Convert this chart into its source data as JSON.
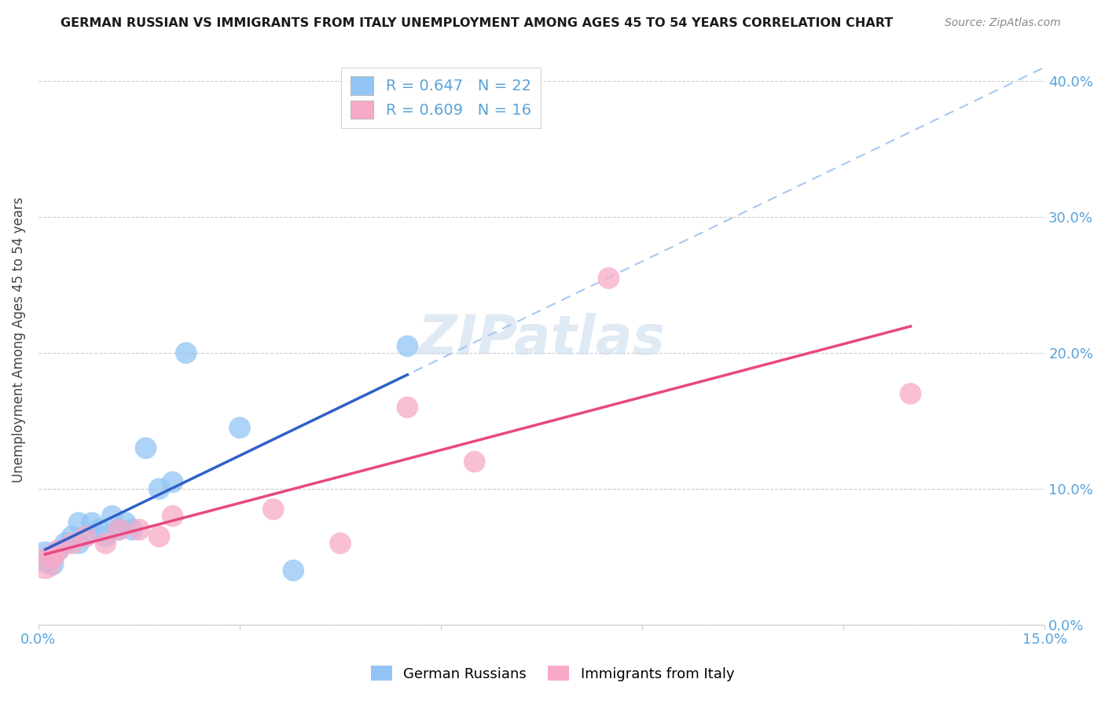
{
  "title": "GERMAN RUSSIAN VS IMMIGRANTS FROM ITALY UNEMPLOYMENT AMONG AGES 45 TO 54 YEARS CORRELATION CHART",
  "source": "Source: ZipAtlas.com",
  "tick_color": "#5ba3d9",
  "ylabel": "Unemployment Among Ages 45 to 54 years",
  "xlim": [
    0.0,
    0.15
  ],
  "ylim": [
    0.0,
    0.42
  ],
  "ytick_pos": [
    0.0,
    0.1,
    0.2,
    0.3,
    0.4
  ],
  "ytick_labels": [
    "0.0%",
    "10.0%",
    "20.0%",
    "30.0%",
    "40.0%"
  ],
  "xtick_pos": [
    0.0,
    0.03,
    0.06,
    0.09,
    0.12,
    0.15
  ],
  "xtick_labels": [
    "0.0%",
    "",
    "",
    "",
    "",
    "15.0%"
  ],
  "blue_color": "#92c5f5",
  "pink_color": "#f7aac8",
  "blue_line_color": "#3060c8",
  "pink_line_color": "#e84880",
  "dashed_line_color": "#a8c8f0",
  "watermark": "ZIPatlas",
  "legend_labels": [
    "R = 0.647   N = 22",
    "R = 0.609   N = 16"
  ],
  "bottom_labels": [
    "German Russians",
    "Immigrants from Italy"
  ],
  "blue_x": [
    0.001,
    0.002,
    0.003,
    0.004,
    0.005,
    0.006,
    0.006,
    0.007,
    0.008,
    0.009,
    0.01,
    0.011,
    0.012,
    0.013,
    0.014,
    0.016,
    0.018,
    0.02,
    0.022,
    0.03,
    0.038,
    0.055
  ],
  "blue_y": [
    0.05,
    0.045,
    0.055,
    0.06,
    0.065,
    0.06,
    0.075,
    0.065,
    0.075,
    0.07,
    0.065,
    0.08,
    0.07,
    0.075,
    0.07,
    0.13,
    0.1,
    0.105,
    0.2,
    0.145,
    0.04,
    0.205
  ],
  "blue_size": [
    800,
    500,
    400,
    400,
    400,
    400,
    400,
    400,
    400,
    400,
    400,
    400,
    400,
    400,
    400,
    400,
    400,
    400,
    400,
    400,
    400,
    400
  ],
  "pink_x": [
    0.001,
    0.002,
    0.003,
    0.005,
    0.007,
    0.01,
    0.012,
    0.015,
    0.018,
    0.02,
    0.035,
    0.045,
    0.055,
    0.065,
    0.085,
    0.13
  ],
  "pink_y": [
    0.045,
    0.05,
    0.055,
    0.06,
    0.065,
    0.06,
    0.07,
    0.07,
    0.065,
    0.08,
    0.085,
    0.06,
    0.16,
    0.12,
    0.255,
    0.17
  ],
  "pink_size": [
    800,
    500,
    400,
    400,
    400,
    400,
    400,
    400,
    400,
    400,
    400,
    400,
    400,
    400,
    400,
    400
  ]
}
